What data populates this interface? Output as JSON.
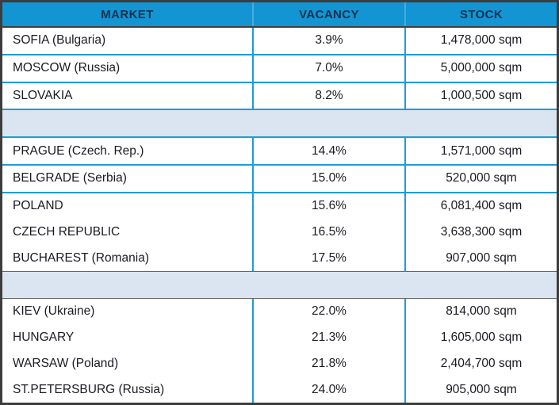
{
  "table": {
    "columns": [
      "MARKET",
      "VACANCY",
      "STOCK"
    ],
    "rows": [
      {
        "type": "data",
        "market": "SOFIA (Bulgaria)",
        "vacancy": "3.9%",
        "stock": "1,478,000 sqm"
      },
      {
        "type": "data",
        "market": "MOSCOW (Russia)",
        "vacancy": "7.0%",
        "stock": "5,000,000 sqm"
      },
      {
        "type": "data",
        "market": "SLOVAKIA",
        "vacancy": "8.2%",
        "stock": "1,000,500 sqm"
      },
      {
        "type": "spacer"
      },
      {
        "type": "data",
        "market": "PRAGUE (Czech. Rep.)",
        "vacancy": "14.4%",
        "stock": "1,571,000 sqm"
      },
      {
        "type": "data",
        "market": "BELGRADE (Serbia)",
        "vacancy": "15.0%",
        "stock": "520,000 sqm"
      },
      {
        "type": "data",
        "market": "POLAND",
        "vacancy": "15.6%",
        "stock": "6,081,400 sqm"
      },
      {
        "type": "data",
        "market": "CZECH REPUBLIC",
        "vacancy": "16.5%",
        "stock": "3,638,300 sqm"
      },
      {
        "type": "data",
        "market": "BUCHAREST (Romania)",
        "vacancy": "17.5%",
        "stock": "907,000 sqm"
      },
      {
        "type": "spacer"
      },
      {
        "type": "data",
        "market": "KIEV (Ukraine)",
        "vacancy": "22.0%",
        "stock": "814,000 sqm"
      },
      {
        "type": "data",
        "market": "HUNGARY",
        "vacancy": "21.3%",
        "stock": "1,605,000 sqm"
      },
      {
        "type": "data",
        "market": "WARSAW (Poland)",
        "vacancy": "21.8%",
        "stock": "2,404,700 sqm"
      },
      {
        "type": "data",
        "market": "ST.PETERSBURG (Russia)",
        "vacancy": "24.0%",
        "stock": "905,000 sqm"
      }
    ]
  },
  "colors": {
    "header_bg": "#1295d2",
    "header_text": "#16304f",
    "grid_blue": "#1e9cd7",
    "spacer_bg": "#dbe5f1",
    "outer_border": "#3d3d3d",
    "body_text": "#1a1a24"
  }
}
